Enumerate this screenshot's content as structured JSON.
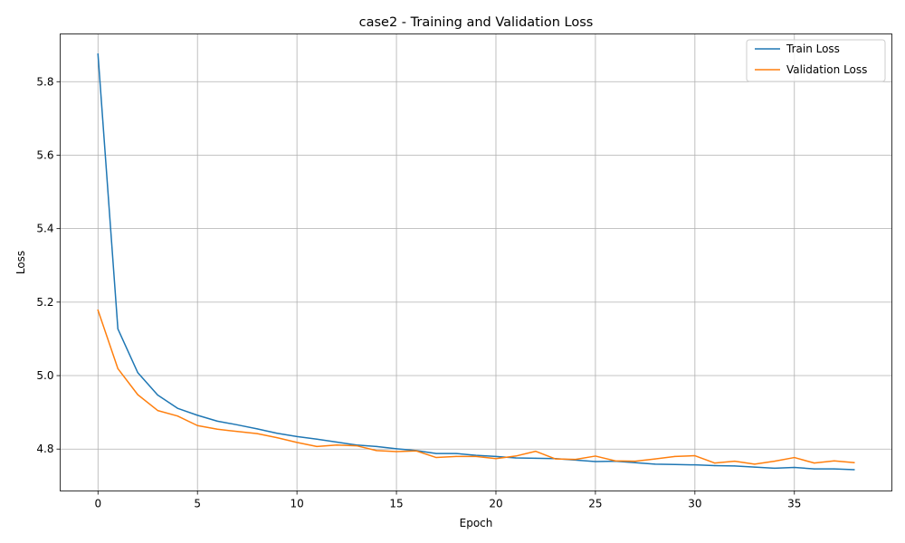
{
  "chart_data": {
    "type": "line",
    "title": "case2 - Training and Validation Loss",
    "xlabel": "Epoch",
    "ylabel": "Loss",
    "xlim": [
      -1.9,
      39.9
    ],
    "ylim": [
      4.686,
      5.93
    ],
    "xticks": [
      0,
      5,
      10,
      15,
      20,
      25,
      30,
      35
    ],
    "xtick_labels": [
      "0",
      "5",
      "10",
      "15",
      "20",
      "25",
      "30",
      "35"
    ],
    "yticks": [
      4.8,
      5.0,
      5.2,
      5.4,
      5.6,
      5.8
    ],
    "ytick_labels": [
      "4.8",
      "5.0",
      "5.2",
      "5.4",
      "5.6",
      "5.8"
    ],
    "grid": true,
    "legend_position": "top-right",
    "x": [
      0,
      1,
      2,
      3,
      4,
      5,
      6,
      7,
      8,
      9,
      10,
      11,
      12,
      13,
      14,
      15,
      16,
      17,
      18,
      19,
      20,
      21,
      22,
      23,
      24,
      25,
      26,
      27,
      28,
      29,
      30,
      31,
      32,
      33,
      34,
      35,
      36,
      37,
      38
    ],
    "series": [
      {
        "name": "Train Loss",
        "color": "#1f77b4",
        "values": [
          5.875,
          5.127,
          5.008,
          4.947,
          4.911,
          4.892,
          4.876,
          4.866,
          4.855,
          4.843,
          4.834,
          4.827,
          4.819,
          4.811,
          4.807,
          4.801,
          4.796,
          4.788,
          4.788,
          4.783,
          4.78,
          4.776,
          4.775,
          4.774,
          4.77,
          4.766,
          4.767,
          4.763,
          4.759,
          4.758,
          4.757,
          4.755,
          4.754,
          4.751,
          4.748,
          4.75,
          4.746,
          4.746,
          4.744
        ]
      },
      {
        "name": "Validation Loss",
        "color": "#ff7f0e",
        "values": [
          5.178,
          5.019,
          4.948,
          4.905,
          4.89,
          4.864,
          4.854,
          4.848,
          4.842,
          4.831,
          4.818,
          4.807,
          4.811,
          4.809,
          4.796,
          4.793,
          4.795,
          4.777,
          4.78,
          4.78,
          4.774,
          4.781,
          4.794,
          4.773,
          4.772,
          4.781,
          4.768,
          4.767,
          4.773,
          4.78,
          4.782,
          4.762,
          4.767,
          4.759,
          4.767,
          4.777,
          4.762,
          4.768,
          4.763
        ]
      }
    ]
  }
}
